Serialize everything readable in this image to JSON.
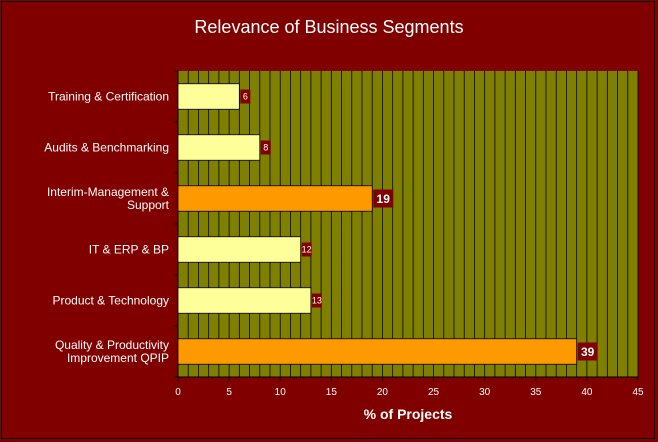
{
  "chart_data": {
    "type": "bar",
    "orientation": "horizontal",
    "title": "Relevance of Business Segments",
    "xlabel": "% of Projects",
    "ylabel": "",
    "xlim": [
      0,
      45
    ],
    "xticks": [
      0,
      5,
      10,
      15,
      20,
      25,
      30,
      35,
      40,
      45
    ],
    "grid": true,
    "categories": [
      [
        "Training & Certification"
      ],
      [
        "Audits & Benchmarking"
      ],
      [
        "Interim-Management &",
        "Support"
      ],
      [
        "IT & ERP & BP"
      ],
      [
        "Product & Technology"
      ],
      [
        "Quality & Productivity",
        "Improvement QPIP"
      ]
    ],
    "values": [
      6,
      8,
      19,
      12,
      13,
      39
    ],
    "highlighted": [
      false,
      false,
      true,
      false,
      false,
      true
    ]
  },
  "colors": {
    "background": "#800000",
    "plot_area": "#808000",
    "gridline": "#000000",
    "bar_normal": "#ffff99",
    "bar_highlight": "#ff9900",
    "label_box": "#800000",
    "text": "#ffffff"
  }
}
